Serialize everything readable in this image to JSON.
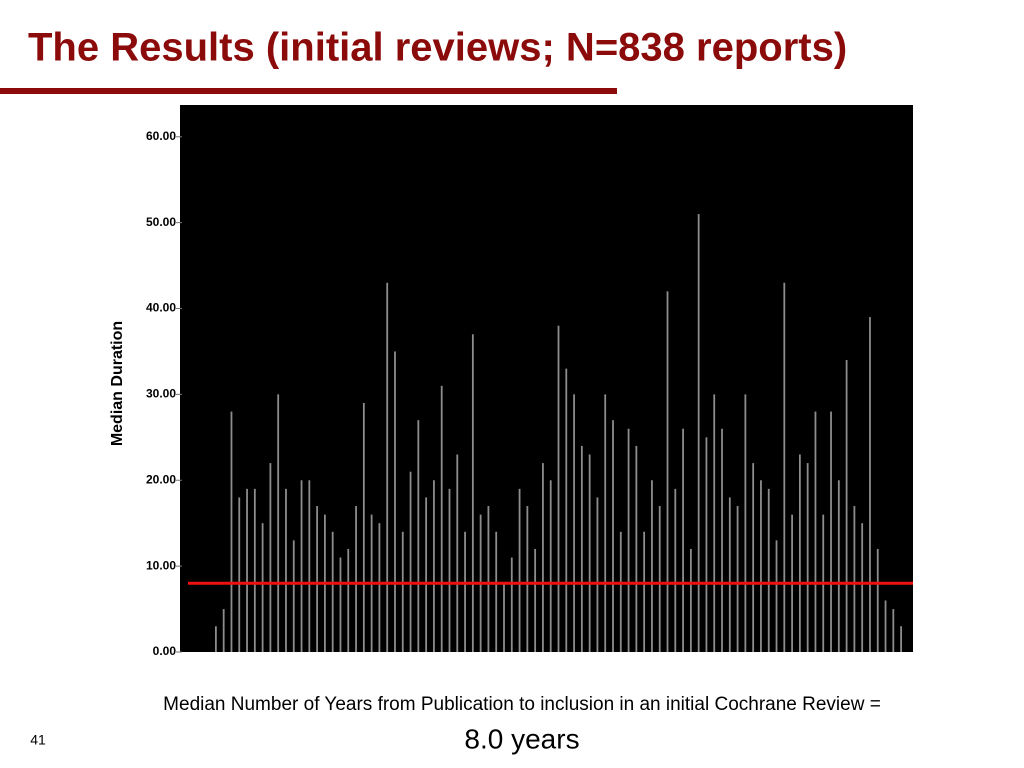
{
  "slide": {
    "title": "The Results (initial reviews; N=838 reports)",
    "caption": "Median Number of Years from Publication to inclusion in an initial Cochrane Review =",
    "caption_value": "8.0 years",
    "page_number": "41"
  },
  "chart_data": {
    "type": "bar",
    "y_label": "Median Duration",
    "values": [
      3,
      5,
      28,
      18,
      19,
      19,
      15,
      22,
      30,
      19,
      13,
      20,
      20,
      17,
      16,
      14,
      11,
      12,
      17,
      29,
      16,
      15,
      43,
      35,
      14,
      21,
      27,
      18,
      20,
      31,
      19,
      23,
      14,
      37,
      16,
      17,
      14,
      8,
      11,
      19,
      17,
      12,
      22,
      20,
      38,
      33,
      30,
      24,
      23,
      18,
      30,
      27,
      14,
      26,
      24,
      14,
      20,
      17,
      42,
      19,
      26,
      12,
      51,
      25,
      30,
      26,
      18,
      17,
      30,
      22,
      20,
      19,
      13,
      43,
      16,
      23,
      22,
      28,
      16,
      28,
      20,
      34,
      17,
      15,
      39,
      12,
      6,
      5,
      3
    ],
    "color": "#b0b0b0",
    "background": "#000000",
    "ylim": [
      0,
      63.7
    ],
    "yticks": [
      {
        "value": 0,
        "label": "0.00"
      },
      {
        "value": 10,
        "label": "10.00"
      },
      {
        "value": 20,
        "label": "20.00"
      },
      {
        "value": 30,
        "label": "30.00"
      },
      {
        "value": 40,
        "label": "40.00"
      },
      {
        "value": 50,
        "label": "50.00"
      },
      {
        "value": 60,
        "label": "60.00"
      }
    ],
    "median_line": 8,
    "median_color": "#ee1111"
  }
}
